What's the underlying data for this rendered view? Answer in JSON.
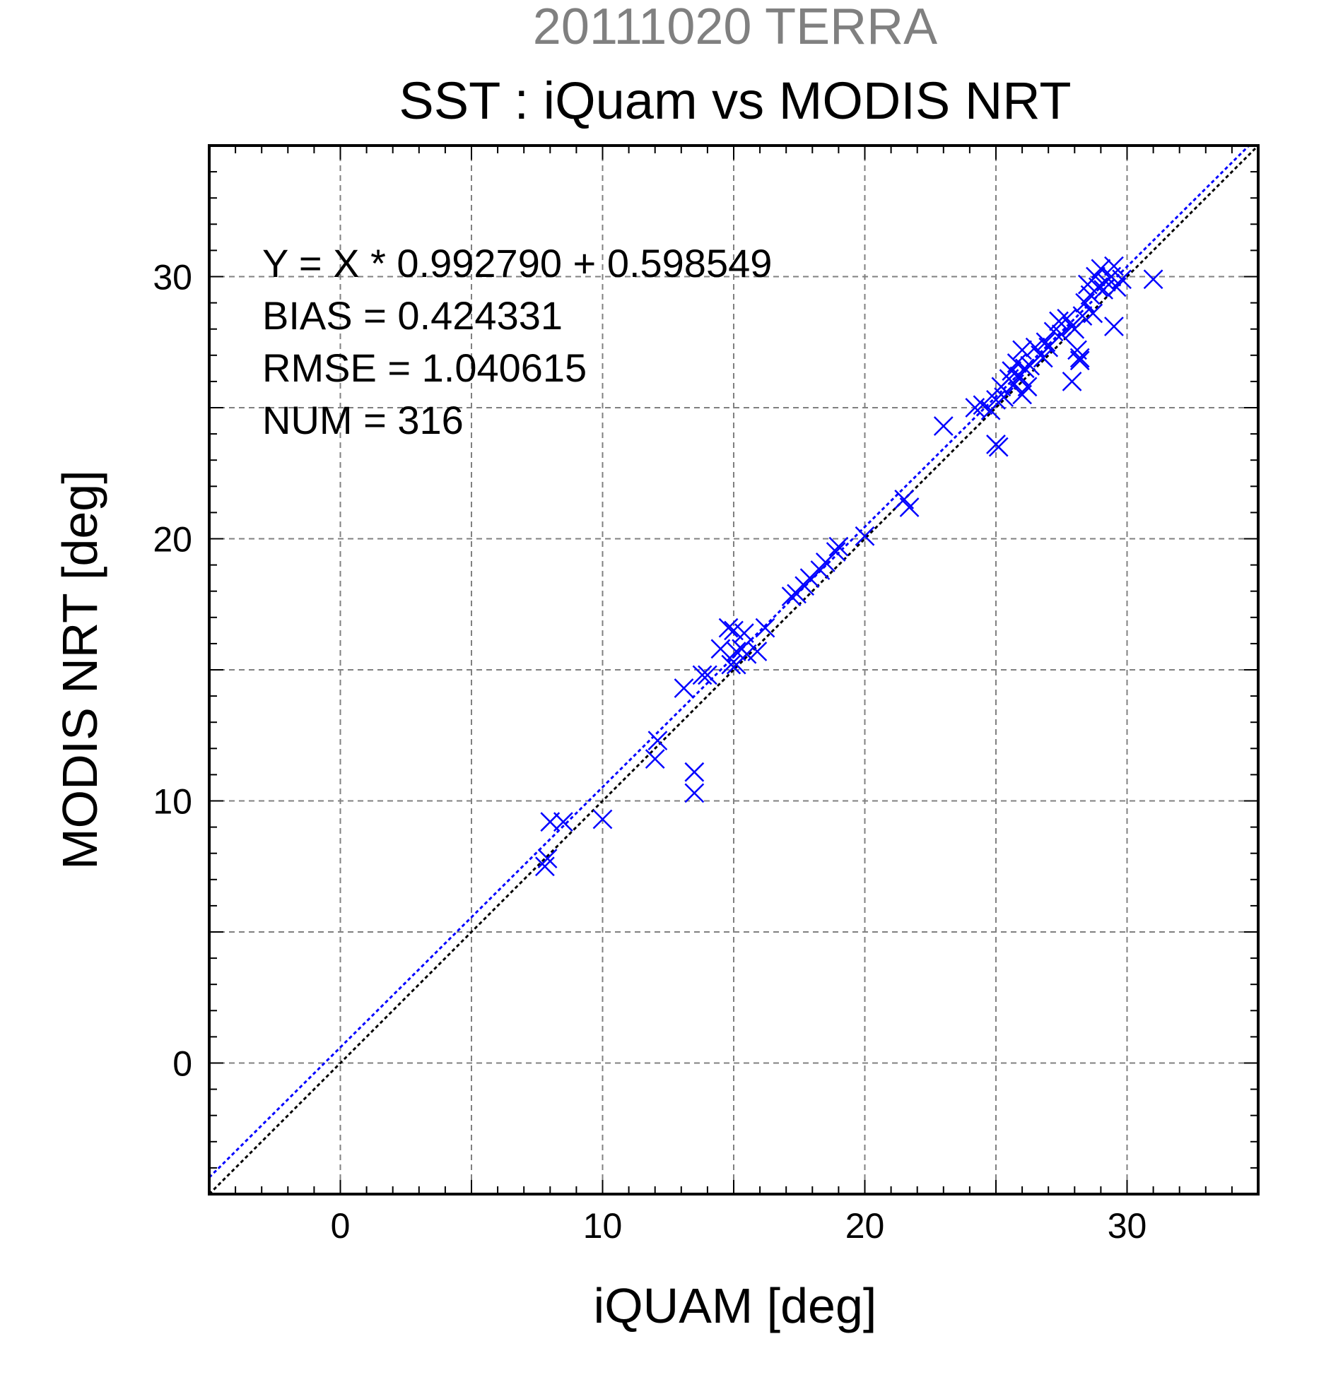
{
  "chart_data": {
    "type": "scatter",
    "supertitle": "20111020 TERRA",
    "title": "SST : iQuam vs MODIS NRT",
    "xlabel": "iQUAM [deg]",
    "ylabel": "MODIS NRT [deg]",
    "xlim": [
      -5,
      35
    ],
    "ylim": [
      -5,
      35
    ],
    "xticks": [
      0,
      10,
      20,
      30
    ],
    "yticks": [
      0,
      10,
      20,
      30
    ],
    "grid": true,
    "colors": {
      "points": "#0000ff",
      "fit_line": "#0000ff",
      "one_to_one_line": "#000000",
      "grid": "#808080"
    },
    "fit": {
      "slope": 0.99279,
      "intercept": 0.598549
    },
    "stats": [
      "Y = X * 0.992790 + 0.598549",
      "BIAS = 0.424331",
      "RMSE = 1.040615",
      "NUM = 316"
    ],
    "series": [
      {
        "marker": "x",
        "x": [
          7.8,
          7.9,
          8.0,
          8.5,
          10.0,
          12.0,
          12.1,
          13.1,
          13.5,
          13.5,
          13.8,
          14.0,
          14.5,
          14.8,
          14.9,
          15.0,
          15.1,
          15.1,
          15.3,
          15.4,
          15.5,
          15.9,
          16.2,
          17.2,
          17.4,
          17.7,
          17.9,
          18.3,
          18.5,
          18.9,
          19.0,
          20.0,
          21.5,
          21.7,
          23.0,
          24.2,
          24.5,
          24.8,
          25.0,
          25.1,
          25.0,
          25.2,
          25.3,
          25.5,
          25.6,
          25.7,
          25.8,
          25.9,
          26.0,
          26.1,
          26.2,
          26.3,
          26.5,
          26.7,
          26.9,
          27.0,
          27.2,
          27.4,
          27.5,
          27.7,
          27.9,
          28.0,
          28.1,
          28.2,
          28.3,
          28.4,
          28.5,
          28.6,
          28.7,
          28.8,
          28.9,
          29.0,
          29.1,
          29.2,
          29.4,
          29.5,
          29.6,
          29.8,
          29.5,
          31.0,
          27.9,
          28.2,
          26.0,
          26.8
        ],
        "y": [
          7.5,
          7.8,
          9.2,
          9.2,
          9.3,
          11.6,
          12.3,
          14.3,
          10.3,
          11.1,
          14.8,
          14.8,
          15.8,
          16.6,
          15.2,
          16.5,
          15.7,
          15.2,
          15.8,
          16.4,
          15.6,
          15.7,
          16.6,
          17.8,
          17.9,
          18.2,
          18.5,
          18.8,
          19.1,
          19.5,
          19.7,
          20.1,
          21.5,
          21.2,
          24.3,
          25.0,
          25.1,
          24.9,
          23.6,
          23.5,
          25.3,
          25.8,
          25.4,
          26.1,
          26.4,
          25.9,
          26.7,
          26.2,
          27.2,
          26.5,
          25.8,
          26.6,
          27.3,
          27.0,
          27.5,
          27.3,
          27.9,
          28.3,
          27.8,
          28.4,
          28.1,
          28.0,
          27.2,
          26.8,
          28.5,
          29.0,
          29.7,
          29.3,
          28.6,
          30.0,
          29.6,
          30.3,
          29.5,
          29.8,
          30.0,
          28.1,
          29.6,
          29.9,
          30.4,
          29.9,
          26.0,
          26.9,
          25.5,
          26.9
        ]
      }
    ]
  }
}
